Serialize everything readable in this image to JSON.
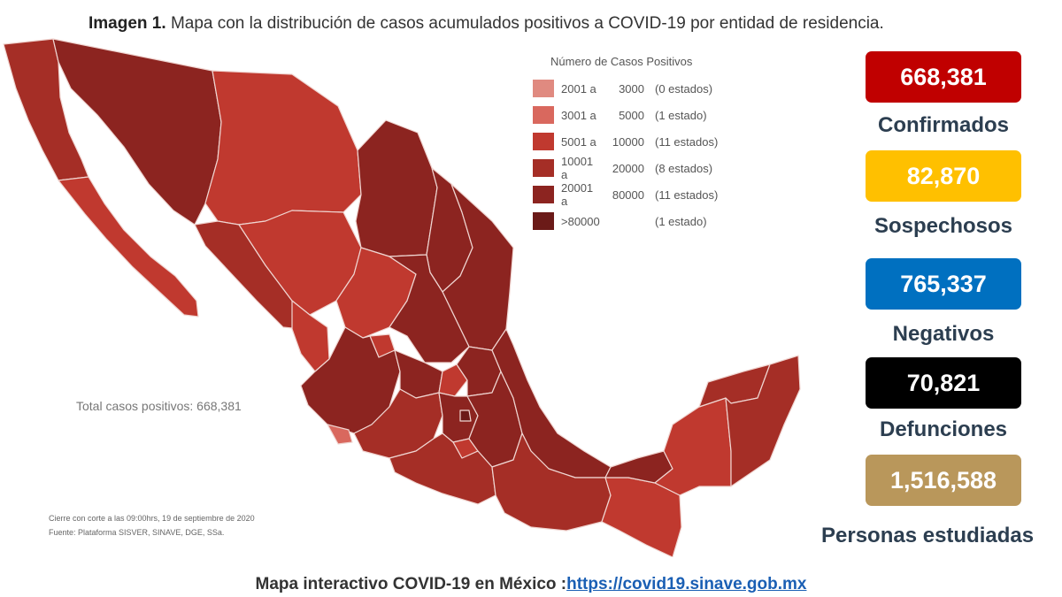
{
  "title": {
    "prefix": "Imagen 1.",
    "text": "Mapa con la distribución de casos acumulados positivos a COVID-19 por entidad de residencia."
  },
  "legend": {
    "title": "Número de Casos Positivos",
    "items": [
      {
        "from": "2001 a",
        "to": "3000",
        "count": "(0 estados)",
        "color": "#e08a80"
      },
      {
        "from": "3001 a",
        "to": "5000",
        "count": "(1 estado)",
        "color": "#d9685e"
      },
      {
        "from": "5001 a",
        "to": "10000",
        "count": "(11 estados)",
        "color": "#c0392f"
      },
      {
        "from": "10001 a",
        "to": "20000",
        "count": "(8 estados)",
        "color": "#a52e26"
      },
      {
        "from": "20001 a",
        "to": "80000",
        "count": "(11 estados)",
        "color": "#8c2420"
      },
      {
        "from": ">80000",
        "to": "",
        "count": "(1 estado)",
        "color": "#6b1a18"
      }
    ]
  },
  "map_colors": {
    "ocean": "#ffffff",
    "border": "#f0d6d2"
  },
  "total_label": "Total casos positivos: 668,381",
  "footnotes": {
    "line1": "Cierre con corte a las 09:00hrs, 19 de septiembre de 2020",
    "line2": "Fuente: Plataforma SISVER, SINAVE, DGE, SSa."
  },
  "stats": [
    {
      "value": "668,381",
      "label": "Confirmados",
      "color": "#c00000"
    },
    {
      "value": "82,870",
      "label": "Sospechosos",
      "color": "#ffc000"
    },
    {
      "value": "765,337",
      "label": "Negativos",
      "color": "#0070c0"
    },
    {
      "value": "70,821",
      "label": "Defunciones",
      "color": "#000000"
    },
    {
      "value": "1,516,588",
      "label": "Personas estudiadas",
      "color": "#b9975b"
    }
  ],
  "link": {
    "text": "Mapa interactivo COVID-19 en México :",
    "url": "https://covid19.sinave.gob.mx"
  }
}
